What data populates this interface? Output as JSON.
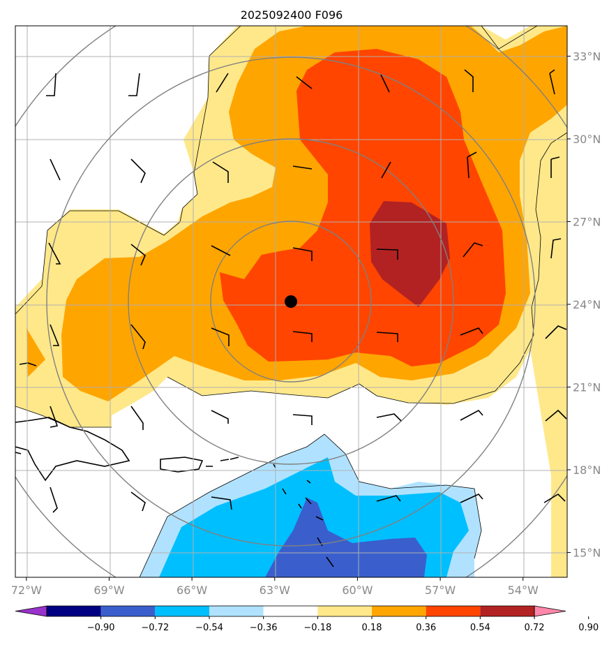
{
  "title": "2025092400 F096",
  "map": {
    "x_ticks": [
      "72°W",
      "69°W",
      "66°W",
      "63°W",
      "60°W",
      "57°W",
      "54°W"
    ],
    "y_ticks": [
      "33°N",
      "30°N",
      "27°N",
      "24°N",
      "21°N",
      "18°N",
      "15°N"
    ],
    "lon_range": [
      -72.4,
      -52.4
    ],
    "lat_range": [
      14.1,
      34.1
    ],
    "center_marker": {
      "lon": -62.6,
      "lat": 24.1
    },
    "grid": true
  },
  "colorbar": {
    "tick_labels": [
      "−0.90",
      "−0.72",
      "−0.54",
      "−0.36",
      "−0.18",
      "0.18",
      "0.36",
      "0.54",
      "0.72",
      "0.90"
    ],
    "colors": [
      "#9933cc",
      "#000080",
      "#3a5fcd",
      "#00bfff",
      "#b0e2ff",
      "#ffffff",
      "#ffe88a",
      "#ffa500",
      "#ff4500",
      "#b22222",
      "#ff88aa"
    ],
    "extend": "both",
    "orientation": "horizontal"
  },
  "colors": {
    "grid": "#b0b0b0",
    "range_rings": "#808080",
    "coastline": "#000000"
  }
}
